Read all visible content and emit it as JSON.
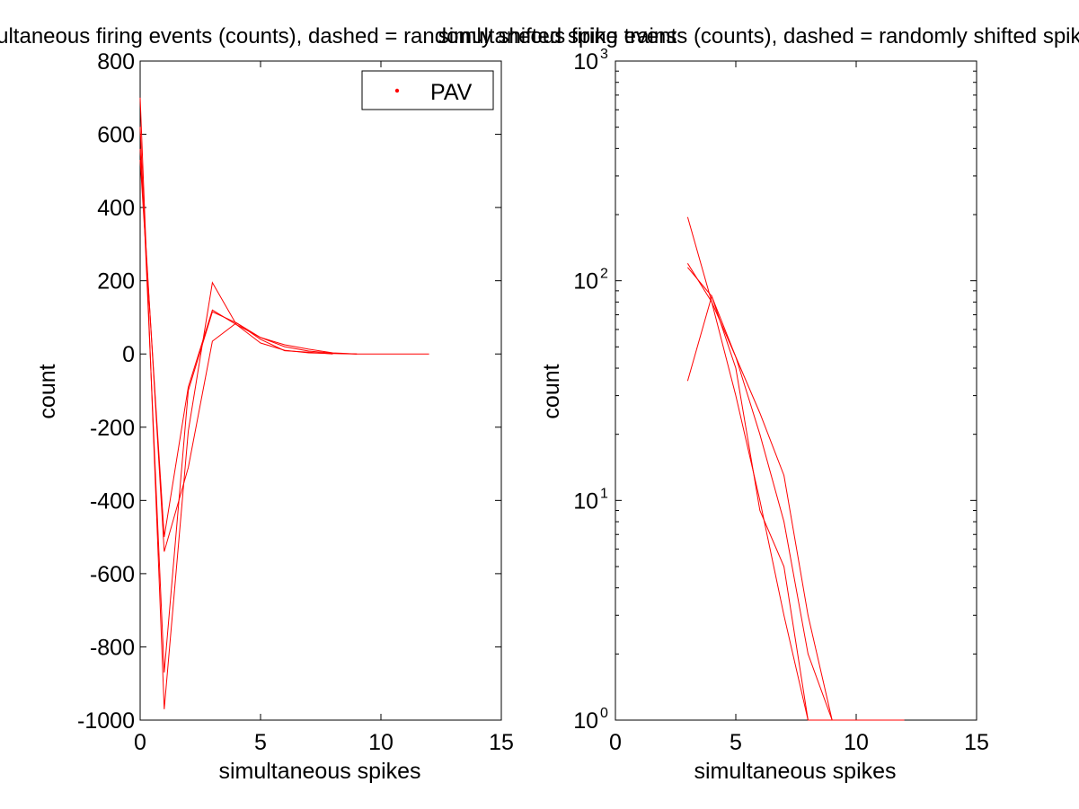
{
  "chart_data": [
    {
      "type": "line",
      "title": "simultaneous firing events (counts), dashed = randomly shifted spike trains",
      "xlabel": "simultaneous spikes",
      "ylabel": "count",
      "xlim": [
        0,
        15
      ],
      "ylim": [
        -1000,
        800
      ],
      "x_ticks": [
        0,
        5,
        10,
        15
      ],
      "x_tick_labels": [
        "0",
        "5",
        "10",
        "15"
      ],
      "y_ticks": [
        -1000,
        -800,
        -600,
        -400,
        -200,
        0,
        200,
        400,
        600,
        800
      ],
      "y_tick_labels": [
        "-1000",
        "-800",
        "-600",
        "-400",
        "-200",
        "0",
        "200",
        "400",
        "600",
        "800"
      ],
      "grid": false,
      "legend": {
        "position": "top-right",
        "entries": [
          {
            "label": "PAV",
            "marker": "dot",
            "color": "#ff0000"
          }
        ]
      },
      "line_color": "#ff0000",
      "series": [
        {
          "x": [
            0,
            1,
            2,
            3,
            4,
            5,
            6,
            7,
            8,
            9,
            10,
            11,
            12
          ],
          "values": [
            700,
            -970,
            -210,
            195,
            80,
            30,
            10,
            3,
            1,
            0,
            0,
            0,
            0
          ]
        },
        {
          "x": [
            0,
            1,
            2,
            3,
            4,
            5,
            6,
            7,
            8,
            9
          ],
          "values": [
            620,
            -870,
            -100,
            115,
            85,
            45,
            25,
            13,
            3,
            0
          ]
        },
        {
          "x": [
            0,
            1,
            2,
            3,
            4,
            5,
            6,
            7,
            8
          ],
          "values": [
            560,
            -540,
            -310,
            35,
            85,
            40,
            9,
            5,
            0
          ]
        },
        {
          "x": [
            0,
            1,
            2,
            3,
            4,
            5,
            6,
            7,
            8,
            9
          ],
          "values": [
            530,
            -500,
            -90,
            120,
            80,
            45,
            20,
            8,
            2,
            0
          ]
        }
      ]
    },
    {
      "type": "line",
      "title": "simultaneous firing events (counts), dashed = randomly shifted spike trains",
      "xlabel": "simultaneous spikes",
      "ylabel": "count",
      "xlim": [
        0,
        15
      ],
      "ylim": [
        1,
        1000
      ],
      "y_scale": "log",
      "x_ticks": [
        0,
        5,
        10,
        15
      ],
      "x_tick_labels": [
        "0",
        "5",
        "10",
        "15"
      ],
      "y_ticks": [
        {
          "value": 1,
          "base": "10",
          "exp": "0"
        },
        {
          "value": 10,
          "base": "10",
          "exp": "1"
        },
        {
          "value": 100,
          "base": "10",
          "exp": "2"
        },
        {
          "value": 1000,
          "base": "10",
          "exp": "3"
        }
      ],
      "grid": false,
      "line_color": "#ff0000",
      "series": [
        {
          "x": [
            3,
            4,
            5,
            6,
            7,
            8,
            9,
            10,
            11,
            12
          ],
          "values": [
            195,
            80,
            30,
            10,
            3,
            1,
            1,
            1,
            1,
            1
          ]
        },
        {
          "x": [
            3,
            4,
            5,
            6,
            7,
            8,
            9
          ],
          "values": [
            115,
            85,
            45,
            25,
            13,
            3,
            1
          ]
        },
        {
          "x": [
            3,
            4,
            5,
            6,
            7,
            8
          ],
          "values": [
            35,
            85,
            40,
            9,
            5,
            1
          ]
        },
        {
          "x": [
            3,
            4,
            5,
            6,
            7,
            8,
            9
          ],
          "values": [
            120,
            80,
            45,
            20,
            8,
            2,
            1
          ]
        }
      ]
    }
  ]
}
